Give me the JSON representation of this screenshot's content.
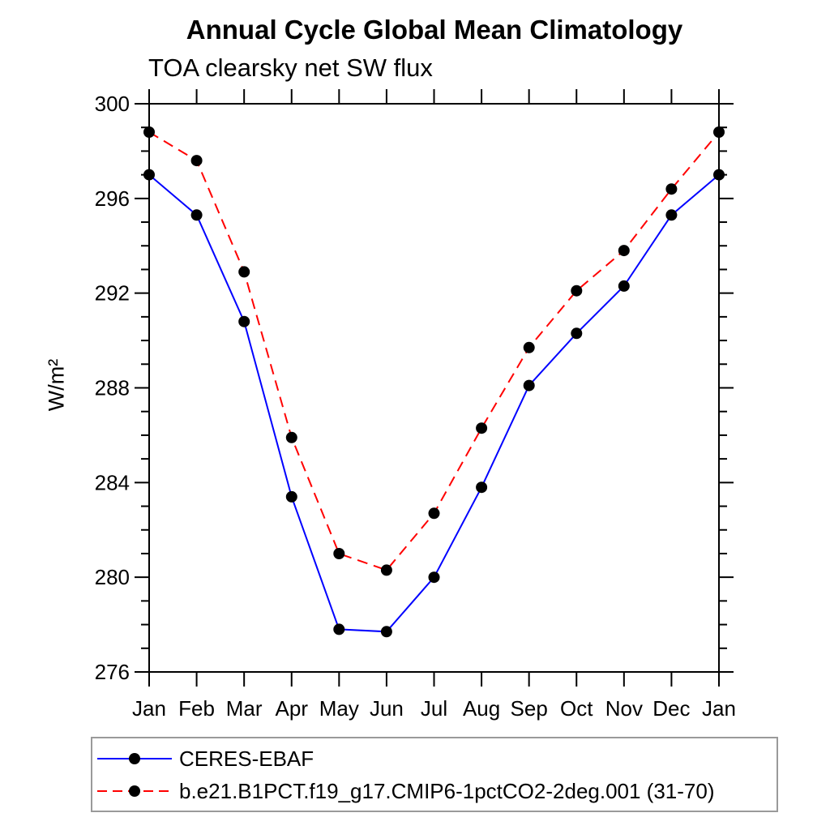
{
  "chart_data": {
    "type": "line",
    "title": "Annual Cycle Global Mean Climatology",
    "subtitle": "TOA clearsky net SW flux",
    "ylabel": "W/m²",
    "x_labels": [
      "Jan",
      "Feb",
      "Mar",
      "Apr",
      "May",
      "Jun",
      "Jul",
      "Aug",
      "Sep",
      "Oct",
      "Nov",
      "Dec",
      "Jan"
    ],
    "ylim": [
      276,
      300
    ],
    "ytick_major": [
      276,
      280,
      284,
      288,
      292,
      296,
      300
    ],
    "ytick_minor_step": 1,
    "grid": false,
    "legend_position": "bottom-left",
    "axis_color": "#000000",
    "series": [
      {
        "name": "CERES-EBAF",
        "color": "#0000ff",
        "line_style": "solid",
        "marker": "circle",
        "marker_color": "#000000",
        "values": [
          297.0,
          295.3,
          290.8,
          283.4,
          277.8,
          277.7,
          280.0,
          283.8,
          288.1,
          290.3,
          292.3,
          295.3,
          297.0
        ]
      },
      {
        "name": "b.e21.B1PCT.f19_g17.CMIP6-1pctCO2-2deg.001 (31-70)",
        "color": "#ff0000",
        "line_style": "dashed",
        "marker": "circle",
        "marker_color": "#000000",
        "values": [
          298.8,
          297.6,
          292.9,
          285.9,
          281.0,
          280.3,
          282.7,
          286.3,
          289.7,
          292.1,
          293.8,
          296.4,
          298.8
        ]
      }
    ]
  }
}
